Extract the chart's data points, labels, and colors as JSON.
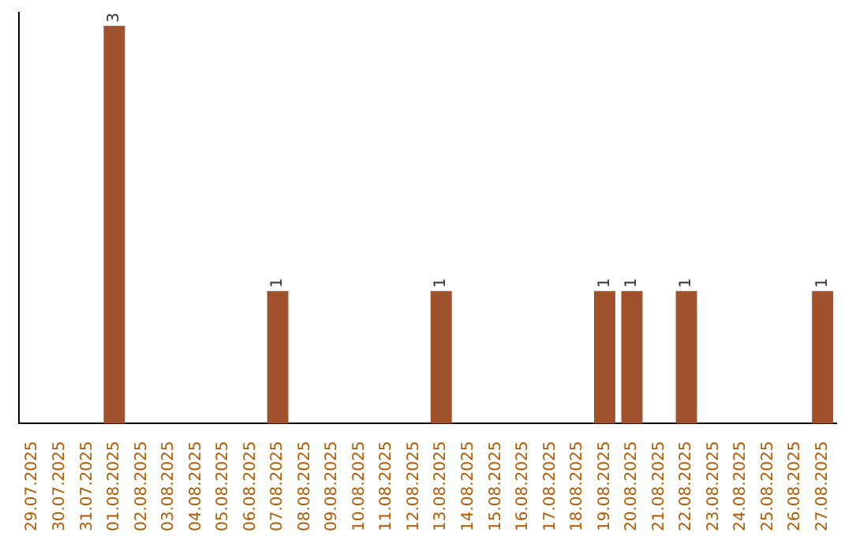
{
  "chart_data": {
    "type": "bar",
    "categories": [
      "29.07.2025",
      "30.07.2025",
      "31.07.2025",
      "01.08.2025",
      "02.08.2025",
      "03.08.2025",
      "04.08.2025",
      "05.08.2025",
      "06.08.2025",
      "07.08.2025",
      "08.08.2025",
      "09.08.2025",
      "10.08.2025",
      "11.08.2025",
      "12.08.2025",
      "13.08.2025",
      "14.08.2025",
      "15.08.2025",
      "16.08.2025",
      "17.08.2025",
      "18.08.2025",
      "19.08.2025",
      "20.08.2025",
      "21.08.2025",
      "22.08.2025",
      "23.08.2025",
      "24.08.2025",
      "25.08.2025",
      "26.08.2025",
      "27.08.2025"
    ],
    "values": [
      0,
      0,
      0,
      3,
      0,
      0,
      0,
      0,
      0,
      1,
      0,
      0,
      0,
      0,
      0,
      1,
      0,
      0,
      0,
      0,
      0,
      1,
      1,
      0,
      1,
      0,
      0,
      0,
      0,
      1
    ],
    "value_labels": [
      null,
      null,
      null,
      "3",
      null,
      null,
      null,
      null,
      null,
      "1",
      null,
      null,
      null,
      null,
      null,
      "1",
      null,
      null,
      null,
      null,
      null,
      "1",
      "1",
      null,
      "1",
      null,
      null,
      null,
      null,
      "1"
    ],
    "color": "#a0522d",
    "ylim": [
      0,
      3.1
    ],
    "grid": false,
    "legend": false,
    "tick_labels": "x"
  }
}
